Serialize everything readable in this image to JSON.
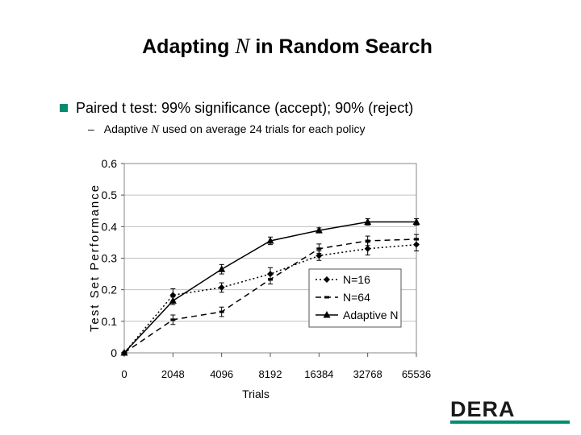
{
  "slide": {
    "title_pre": "Adapting ",
    "title_var": "N",
    "title_post": " in Random Search",
    "bullet": "Paired t test: 99% significance (accept); 90% (reject)",
    "sub_dash": "–",
    "sub_pre": "Adaptive ",
    "sub_var": "N",
    "sub_post": " used on average 24 trials for each policy",
    "logo_text": "DERA"
  },
  "colors": {
    "bullet": "#008c6e",
    "logo_bar": "#008c6e"
  },
  "chart_data": {
    "type": "line",
    "categories": [
      "0",
      "2048",
      "4096",
      "8192",
      "16384",
      "32768",
      "65536"
    ],
    "xlabel": "Trials",
    "ylabel": "Test Set Performance",
    "ylim": [
      0,
      0.6
    ],
    "yticks": [
      "0",
      "0.1",
      "0.2",
      "0.3",
      "0.4",
      "0.5",
      "0.6"
    ],
    "grid": "horizontal",
    "legend_position": "lower-right inside plot",
    "series": [
      {
        "name": "N=16",
        "style": "dotted",
        "marker": "diamond",
        "values": [
          0,
          0.183,
          0.207,
          0.25,
          0.308,
          0.33,
          0.343
        ],
        "errors": [
          0,
          0.02,
          0.015,
          0.02,
          0.015,
          0.02,
          0.02
        ]
      },
      {
        "name": "N=64",
        "style": "dashed",
        "marker": "dash",
        "values": [
          0,
          0.105,
          0.13,
          0.233,
          0.33,
          0.355,
          0.36
        ],
        "errors": [
          0,
          0.015,
          0.015,
          0.015,
          0.015,
          0.015,
          0.015
        ]
      },
      {
        "name": "Adaptive N",
        "style": "solid",
        "marker": "triangle",
        "values": [
          0,
          0.165,
          0.265,
          0.355,
          0.388,
          0.415,
          0.415
        ],
        "errors": [
          0,
          0.012,
          0.015,
          0.012,
          0.008,
          0.01,
          0.01
        ]
      }
    ]
  }
}
